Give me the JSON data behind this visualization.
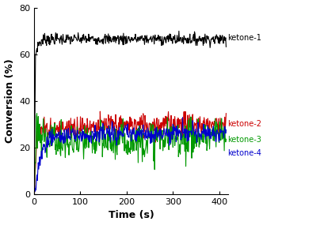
{
  "xlabel": "Time (s)",
  "ylabel": "Conversion (%)",
  "xlim": [
    0,
    420
  ],
  "ylim": [
    0,
    80
  ],
  "xticks": [
    0,
    100,
    200,
    300,
    400
  ],
  "yticks": [
    0,
    20,
    40,
    60,
    80
  ],
  "lines": [
    {
      "label": "ketone-1",
      "color": "#000000",
      "lw": 0.8
    },
    {
      "label": "ketone-2",
      "color": "#cc0000",
      "lw": 0.8
    },
    {
      "label": "ketone-3",
      "color": "#009900",
      "lw": 0.8
    },
    {
      "label": "ketone-4",
      "color": "#0000cc",
      "lw": 0.8
    }
  ],
  "label_fontsize": 9,
  "tick_fontsize": 8,
  "legend_fontsize": 7,
  "background_color": "#ffffff",
  "n_points": 420,
  "seed": 7
}
